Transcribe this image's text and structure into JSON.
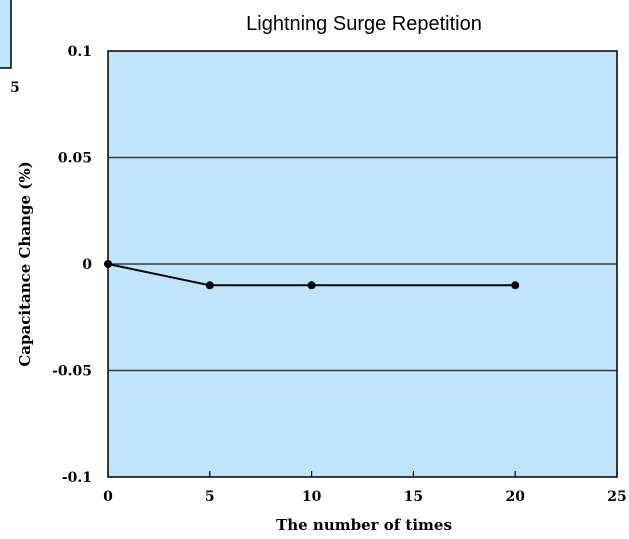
{
  "chart_data": {
    "type": "line",
    "title": "Lightning Surge Repetition",
    "xlabel": "The number of times",
    "ylabel": "Capacitance Change (%)",
    "xlim": [
      0,
      25
    ],
    "ylim": [
      -0.1,
      0.1
    ],
    "x_ticks": [
      0,
      5,
      10,
      15,
      20,
      25
    ],
    "y_ticks": [
      0.1,
      0.05,
      0,
      -0.05,
      -0.1
    ],
    "x_tick_labels": [
      "0",
      "5",
      "10",
      "15",
      "20",
      "25"
    ],
    "y_tick_labels": [
      "0.1",
      "0.05",
      "0",
      "-0.05",
      "-0.1"
    ],
    "grid": "horizontal",
    "series": [
      {
        "x": [
          0,
          5,
          10,
          20
        ],
        "y": [
          0,
          -0.01,
          -0.01,
          -0.01
        ]
      }
    ],
    "colors": {
      "plot_background": "#bfe4fb",
      "line": "#000000",
      "border": "#000000"
    }
  },
  "partial_chart": {
    "tick_label": "5",
    "background": "#bfe4fb"
  }
}
